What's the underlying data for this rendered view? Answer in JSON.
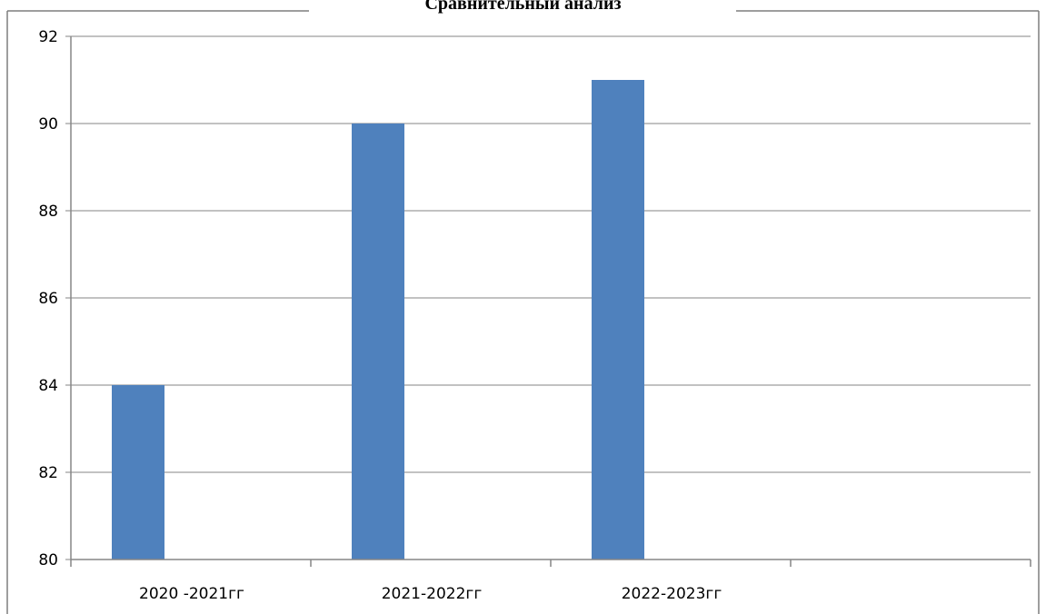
{
  "chart_data": {
    "type": "bar",
    "title": "Сравнительный анализ",
    "xlabel": "",
    "ylabel": "",
    "categories": [
      "2020 -2021гг",
      "2021-2022гг",
      "2022-2023гг",
      ""
    ],
    "values": [
      84,
      90,
      91,
      null
    ],
    "ylim": [
      80,
      92
    ],
    "yticks": [
      80,
      82,
      84,
      86,
      88,
      90,
      92
    ],
    "grid": true,
    "legend": "none",
    "colors": {
      "bar": "#4F81BD",
      "grid": "#868686",
      "axis": "#868686",
      "frame": "#7f7f7f"
    }
  }
}
